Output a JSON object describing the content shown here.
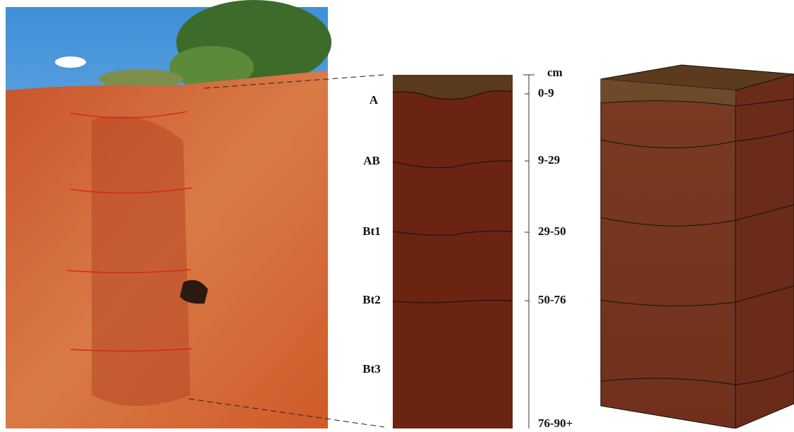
{
  "scale_unit": "cm",
  "horizons": [
    "A",
    "AB",
    "Bt1",
    "Bt2",
    "Bt3"
  ],
  "depths": [
    "0-9",
    "9-29",
    "29-50",
    "50-76",
    "76-90+"
  ]
}
